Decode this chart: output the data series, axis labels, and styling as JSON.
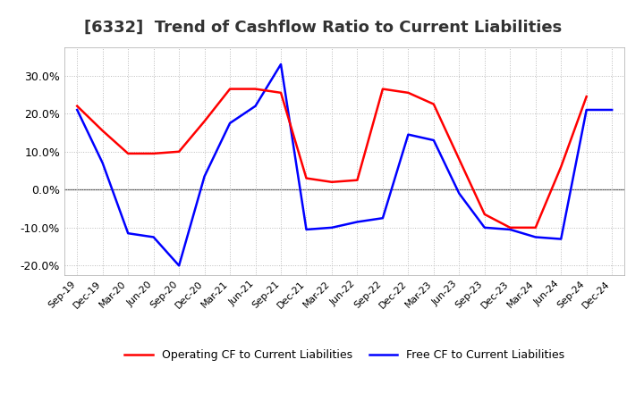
{
  "title": "[6332]  Trend of Cashflow Ratio to Current Liabilities",
  "x_labels": [
    "Sep-19",
    "Dec-19",
    "Mar-20",
    "Jun-20",
    "Sep-20",
    "Dec-20",
    "Mar-21",
    "Jun-21",
    "Sep-21",
    "Dec-21",
    "Mar-22",
    "Jun-22",
    "Sep-22",
    "Dec-22",
    "Mar-23",
    "Jun-23",
    "Sep-23",
    "Dec-23",
    "Mar-24",
    "Jun-24",
    "Sep-24",
    "Dec-24"
  ],
  "operating_cf": [
    0.22,
    0.155,
    0.095,
    0.095,
    0.1,
    0.18,
    0.265,
    0.265,
    0.255,
    0.03,
    0.02,
    0.025,
    0.265,
    0.255,
    0.225,
    0.08,
    -0.065,
    -0.1,
    -0.1,
    0.06,
    0.245,
    null
  ],
  "free_cf": [
    0.21,
    0.07,
    -0.115,
    -0.125,
    -0.2,
    0.035,
    0.175,
    0.22,
    0.33,
    -0.105,
    -0.1,
    -0.085,
    -0.075,
    0.145,
    0.13,
    -0.01,
    -0.1,
    -0.105,
    -0.125,
    -0.13,
    0.21,
    0.21
  ],
  "ylim": [
    -0.225,
    0.375
  ],
  "yticks": [
    -0.2,
    -0.1,
    0.0,
    0.1,
    0.2,
    0.3
  ],
  "operating_color": "#FF0000",
  "free_color": "#0000FF",
  "background_color": "#FFFFFF",
  "grid_color": "#BBBBBB",
  "title_fontsize": 13,
  "title_color": "#333333"
}
